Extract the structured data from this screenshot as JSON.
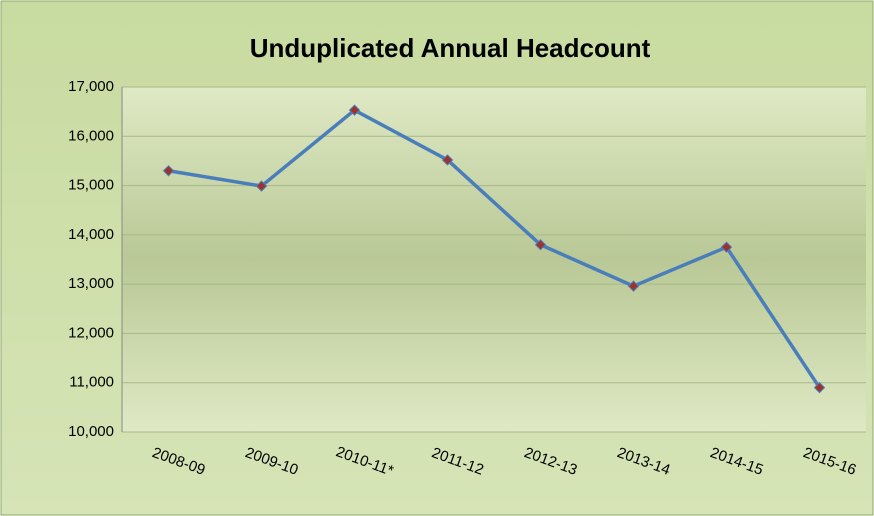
{
  "chart_data": {
    "type": "line",
    "title": "Unduplicated Annual Headcount",
    "categories": [
      "2008-09",
      "2009-10",
      "2010-11*",
      "2011-12",
      "2012-13",
      "2013-14",
      "2014-15",
      "2015-16"
    ],
    "series": [
      {
        "name": "Headcount",
        "color": "#4a7ebb",
        "marker_color": "#a0322e",
        "values": [
          15300,
          14990,
          16530,
          15520,
          13800,
          12960,
          13750,
          10900
        ]
      }
    ],
    "ylim": [
      10000,
      17000
    ],
    "yticks": [
      {
        "value": 10000,
        "label": "10,000"
      },
      {
        "value": 11000,
        "label": "11,000"
      },
      {
        "value": 12000,
        "label": "12,000"
      },
      {
        "value": 13000,
        "label": "13,000"
      },
      {
        "value": 14000,
        "label": "14,000"
      },
      {
        "value": 15000,
        "label": "15,000"
      },
      {
        "value": 16000,
        "label": "16,000"
      },
      {
        "value": 17000,
        "label": "17,000"
      }
    ],
    "grid": true
  }
}
